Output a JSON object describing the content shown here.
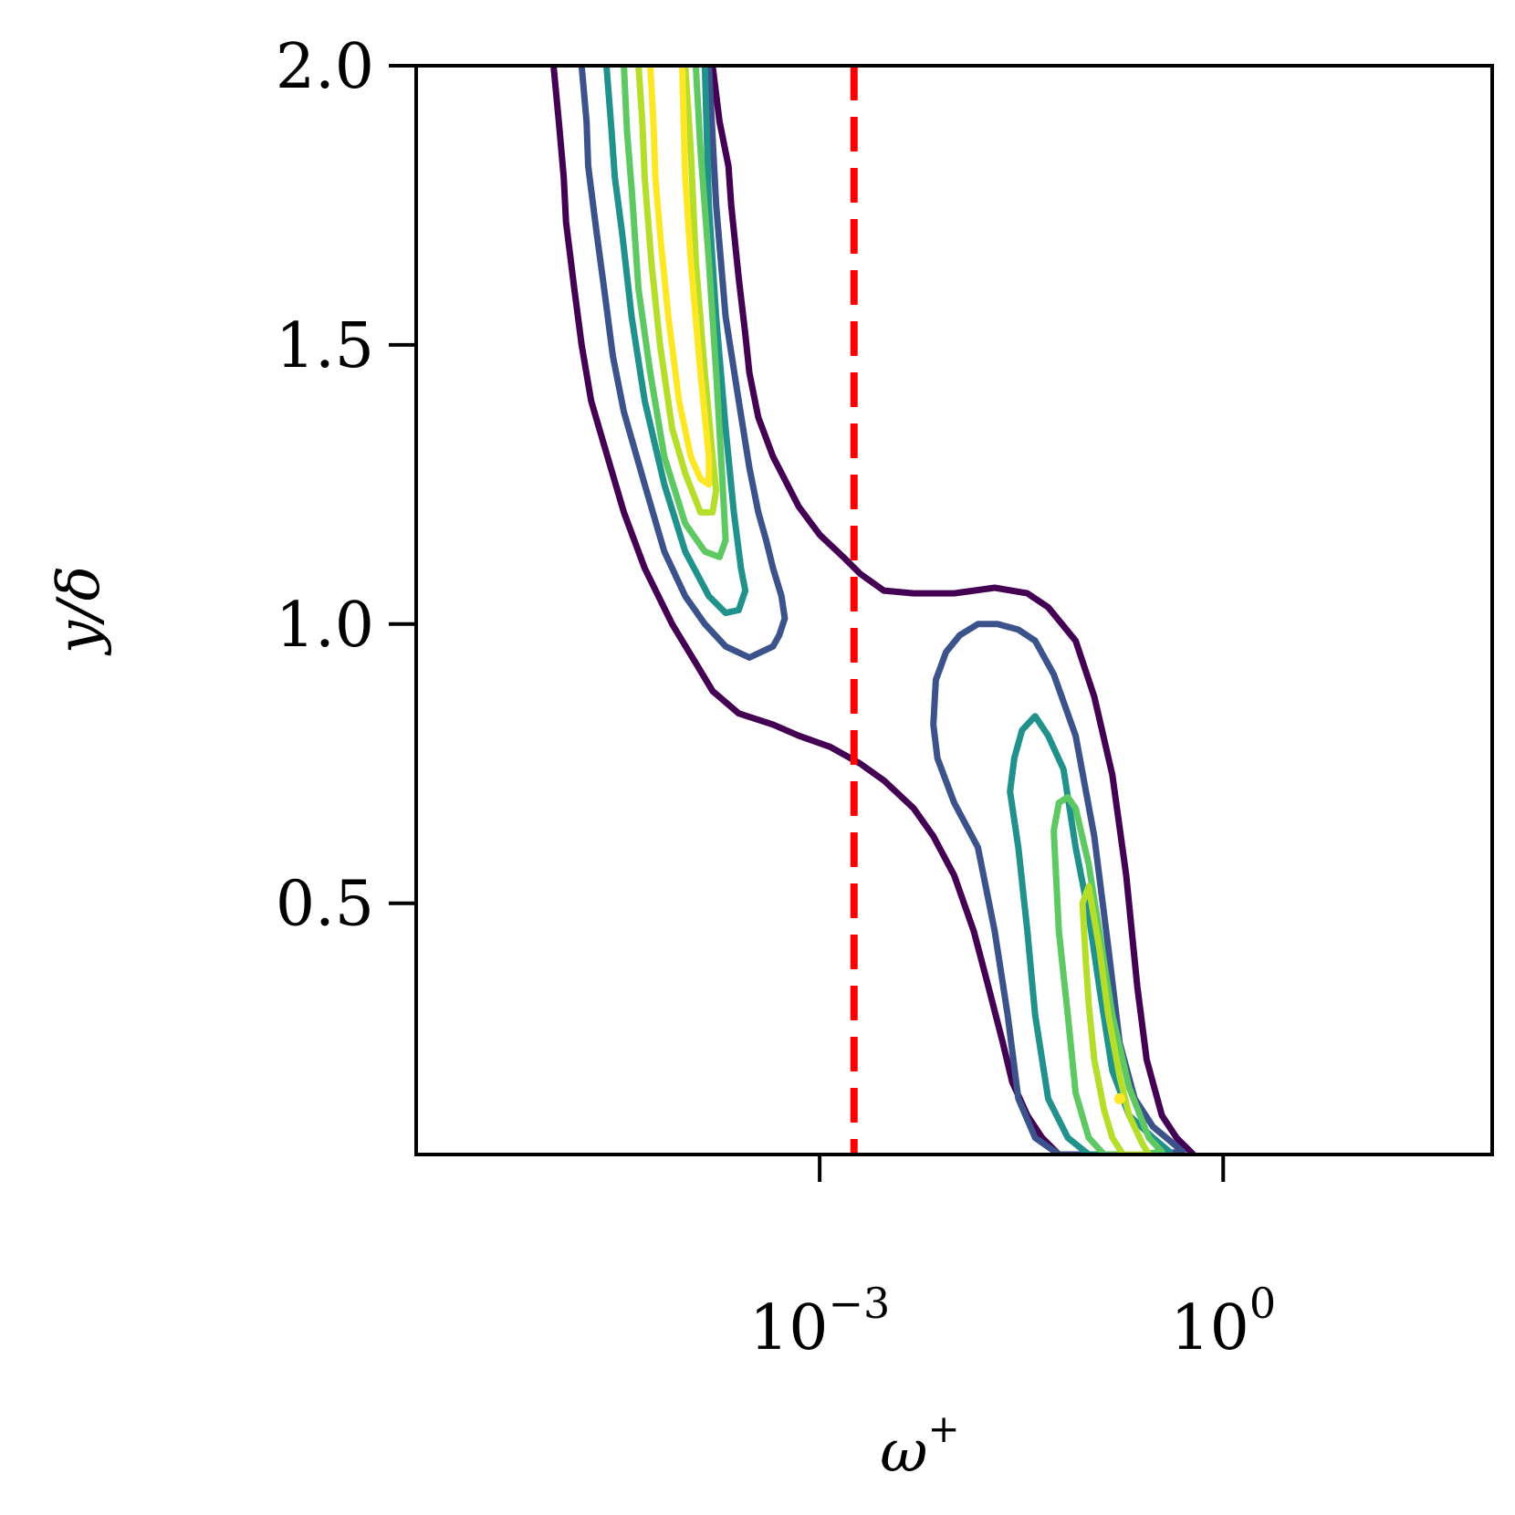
{
  "chart_data": {
    "type": "contour",
    "xlabel": "ω",
    "xlabel_sup": "+",
    "ylabel": "y/δ",
    "x_scale": "log",
    "xlim": [
      1e-06,
      100
    ],
    "ylim": [
      0.05,
      2.0
    ],
    "grid": false,
    "legend": "none",
    "x_ticks": [
      {
        "value": 0.001,
        "base": "10",
        "exponent": "−3"
      },
      {
        "value": 1,
        "base": "10",
        "exponent": "0"
      }
    ],
    "y_ticks": [
      {
        "value": 0.5,
        "label": "0.5"
      },
      {
        "value": 1.0,
        "label": "1.0"
      },
      {
        "value": 1.5,
        "label": "1.5"
      },
      {
        "value": 2.0,
        "label": "2.0"
      }
    ],
    "reference_line": {
      "orientation": "vertical",
      "x": 0.0018,
      "color": "#ff0000",
      "style": "dashed"
    },
    "level_colors": [
      "#440154",
      "#3b528b",
      "#21918c",
      "#5ec962",
      "#b5de2b",
      "#fde725"
    ],
    "contours": [
      {
        "level": 1,
        "color": "#440154",
        "closed": false,
        "points": [
          [
            1.05e-05,
            2.0
          ],
          [
            1.15e-05,
            1.9
          ],
          [
            1.25e-05,
            1.8
          ],
          [
            1.3e-05,
            1.72
          ],
          [
            1.5e-05,
            1.6
          ],
          [
            1.7e-05,
            1.5
          ],
          [
            2e-05,
            1.4
          ],
          [
            2.5e-05,
            1.32
          ],
          [
            3.5e-05,
            1.2
          ],
          [
            5e-05,
            1.1
          ],
          [
            8e-05,
            1.0
          ],
          [
            0.00012,
            0.93
          ],
          [
            0.00016,
            0.88
          ],
          [
            0.00025,
            0.84
          ],
          [
            0.00045,
            0.82
          ],
          [
            0.0007,
            0.8
          ],
          [
            0.0012,
            0.78
          ],
          [
            0.002,
            0.75
          ],
          [
            0.003,
            0.72
          ],
          [
            0.005,
            0.67
          ],
          [
            0.007,
            0.62
          ],
          [
            0.01,
            0.55
          ],
          [
            0.014,
            0.45
          ],
          [
            0.018,
            0.35
          ],
          [
            0.023,
            0.25
          ],
          [
            0.027,
            0.18
          ],
          [
            0.035,
            0.12
          ],
          [
            0.045,
            0.08
          ],
          [
            0.06,
            0.05
          ]
        ]
      },
      {
        "level": 1,
        "color": "#440154",
        "closed": false,
        "points": [
          [
            0.00016,
            2.0
          ],
          [
            0.00018,
            1.9
          ],
          [
            0.00021,
            1.82
          ],
          [
            0.00022,
            1.75
          ],
          [
            0.00025,
            1.62
          ],
          [
            0.00028,
            1.52
          ],
          [
            0.0003,
            1.45
          ],
          [
            0.00033,
            1.4
          ],
          [
            0.00035,
            1.37
          ],
          [
            0.00045,
            1.3
          ],
          [
            0.0007,
            1.21
          ],
          [
            0.001,
            1.16
          ],
          [
            0.0015,
            1.12
          ],
          [
            0.002,
            1.09
          ],
          [
            0.003,
            1.06
          ],
          [
            0.005,
            1.055
          ],
          [
            0.01,
            1.055
          ],
          [
            0.02,
            1.065
          ],
          [
            0.035,
            1.055
          ],
          [
            0.05,
            1.03
          ],
          [
            0.08,
            0.97
          ],
          [
            0.11,
            0.87
          ],
          [
            0.15,
            0.73
          ],
          [
            0.19,
            0.55
          ],
          [
            0.23,
            0.35
          ],
          [
            0.27,
            0.22
          ],
          [
            0.35,
            0.12
          ],
          [
            0.45,
            0.08
          ],
          [
            0.6,
            0.05
          ]
        ]
      },
      {
        "level": 2,
        "color": "#3b528b",
        "closed": false,
        "points": [
          [
            1.7e-05,
            2.0
          ],
          [
            1.85e-05,
            1.9
          ],
          [
            1.9e-05,
            1.82
          ],
          [
            2.2e-05,
            1.7
          ],
          [
            2.5e-05,
            1.6
          ],
          [
            2.9e-05,
            1.48
          ],
          [
            3.5e-05,
            1.38
          ],
          [
            5e-05,
            1.25
          ],
          [
            7e-05,
            1.13
          ],
          [
            0.0001,
            1.05
          ],
          [
            0.00014,
            1.0
          ],
          [
            0.0002,
            0.96
          ],
          [
            0.0003,
            0.94
          ],
          [
            0.00045,
            0.96
          ],
          [
            0.0005,
            0.98
          ],
          [
            0.00055,
            1.01
          ],
          [
            0.00052,
            1.05
          ],
          [
            0.00045,
            1.1
          ],
          [
            0.0004,
            1.15
          ],
          [
            0.00035,
            1.2
          ],
          [
            0.0003,
            1.28
          ],
          [
            0.00025,
            1.4
          ],
          [
            0.0002,
            1.55
          ],
          [
            0.00017,
            1.75
          ],
          [
            0.00015,
            2.0
          ]
        ]
      },
      {
        "level": 2,
        "color": "#3b528b",
        "closed": true,
        "points": [
          [
            0.0073,
            0.9
          ],
          [
            0.0087,
            0.95
          ],
          [
            0.011,
            0.98
          ],
          [
            0.015,
            1.0
          ],
          [
            0.021,
            1.0
          ],
          [
            0.03,
            0.99
          ],
          [
            0.04,
            0.97
          ],
          [
            0.055,
            0.91
          ],
          [
            0.08,
            0.8
          ],
          [
            0.11,
            0.62
          ],
          [
            0.14,
            0.42
          ],
          [
            0.17,
            0.25
          ],
          [
            0.22,
            0.15
          ],
          [
            0.3,
            0.1
          ],
          [
            0.4,
            0.075
          ],
          [
            0.5,
            0.055
          ],
          [
            0.3,
            0.05
          ],
          [
            0.06,
            0.05
          ],
          [
            0.04,
            0.08
          ],
          [
            0.03,
            0.15
          ],
          [
            0.025,
            0.3
          ],
          [
            0.02,
            0.45
          ],
          [
            0.015,
            0.6
          ],
          [
            0.01,
            0.68
          ],
          [
            0.0075,
            0.76
          ],
          [
            0.007,
            0.82
          ],
          [
            0.0073,
            0.9
          ]
        ]
      },
      {
        "level": 3,
        "color": "#21918c",
        "closed": false,
        "points": [
          [
            2.6e-05,
            2.0
          ],
          [
            2.8e-05,
            1.9
          ],
          [
            3e-05,
            1.8
          ],
          [
            3.4e-05,
            1.7
          ],
          [
            4e-05,
            1.55
          ],
          [
            5e-05,
            1.4
          ],
          [
            7e-05,
            1.25
          ],
          [
            0.0001,
            1.13
          ],
          [
            0.00015,
            1.05
          ],
          [
            0.0002,
            1.02
          ],
          [
            0.00025,
            1.025
          ],
          [
            0.00028,
            1.06
          ],
          [
            0.00026,
            1.1
          ],
          [
            0.00023,
            1.2
          ],
          [
            0.0002,
            1.35
          ],
          [
            0.00017,
            1.55
          ],
          [
            0.00015,
            1.75
          ],
          [
            0.00014,
            2.0
          ]
        ]
      },
      {
        "level": 3,
        "color": "#21918c",
        "closed": true,
        "points": [
          [
            0.026,
            0.7
          ],
          [
            0.028,
            0.76
          ],
          [
            0.032,
            0.81
          ],
          [
            0.04,
            0.835
          ],
          [
            0.05,
            0.8
          ],
          [
            0.065,
            0.74
          ],
          [
            0.08,
            0.6
          ],
          [
            0.1,
            0.48
          ],
          [
            0.12,
            0.35
          ],
          [
            0.15,
            0.2
          ],
          [
            0.2,
            0.12
          ],
          [
            0.3,
            0.08
          ],
          [
            0.4,
            0.055
          ],
          [
            0.3,
            0.05
          ],
          [
            0.1,
            0.05
          ],
          [
            0.07,
            0.08
          ],
          [
            0.05,
            0.15
          ],
          [
            0.04,
            0.3
          ],
          [
            0.035,
            0.45
          ],
          [
            0.03,
            0.6
          ],
          [
            0.026,
            0.7
          ]
        ]
      },
      {
        "level": 4,
        "color": "#5ec962",
        "closed": false,
        "points": [
          [
            3.5e-05,
            2.0
          ],
          [
            3.7e-05,
            1.88
          ],
          [
            4e-05,
            1.78
          ],
          [
            4.5e-05,
            1.6
          ],
          [
            5.5e-05,
            1.45
          ],
          [
            7e-05,
            1.3
          ],
          [
            0.0001,
            1.18
          ],
          [
            0.00014,
            1.13
          ],
          [
            0.00018,
            1.12
          ],
          [
            0.0002,
            1.15
          ],
          [
            0.00019,
            1.25
          ],
          [
            0.00017,
            1.45
          ],
          [
            0.00015,
            1.65
          ],
          [
            0.00013,
            1.85
          ],
          [
            0.00012,
            2.0
          ]
        ]
      },
      {
        "level": 4,
        "color": "#5ec962",
        "closed": true,
        "points": [
          [
            0.055,
            0.63
          ],
          [
            0.06,
            0.68
          ],
          [
            0.07,
            0.69
          ],
          [
            0.08,
            0.67
          ],
          [
            0.1,
            0.57
          ],
          [
            0.12,
            0.45
          ],
          [
            0.15,
            0.3
          ],
          [
            0.2,
            0.17
          ],
          [
            0.28,
            0.08
          ],
          [
            0.35,
            0.055
          ],
          [
            0.25,
            0.05
          ],
          [
            0.13,
            0.05
          ],
          [
            0.1,
            0.08
          ],
          [
            0.08,
            0.16
          ],
          [
            0.07,
            0.3
          ],
          [
            0.06,
            0.45
          ],
          [
            0.055,
            0.63
          ]
        ]
      },
      {
        "level": 5,
        "color": "#b5de2b",
        "closed": false,
        "points": [
          [
            4.5e-05,
            2.0
          ],
          [
            4.8e-05,
            1.9
          ],
          [
            5e-05,
            1.8
          ],
          [
            5.6e-05,
            1.65
          ],
          [
            6.5e-05,
            1.5
          ],
          [
            8e-05,
            1.35
          ],
          [
            0.0001,
            1.27
          ],
          [
            0.00013,
            1.2
          ],
          [
            0.00016,
            1.2
          ],
          [
            0.00017,
            1.24
          ],
          [
            0.00016,
            1.3
          ],
          [
            0.00014,
            1.45
          ],
          [
            0.00012,
            1.65
          ],
          [
            0.00011,
            1.85
          ],
          [
            0.0001,
            2.0
          ]
        ]
      },
      {
        "level": 5,
        "color": "#b5de2b",
        "closed": true,
        "points": [
          [
            0.09,
            0.5
          ],
          [
            0.1,
            0.53
          ],
          [
            0.105,
            0.5
          ],
          [
            0.12,
            0.42
          ],
          [
            0.14,
            0.3
          ],
          [
            0.17,
            0.19
          ],
          [
            0.2,
            0.12
          ],
          [
            0.25,
            0.07
          ],
          [
            0.28,
            0.05
          ],
          [
            0.18,
            0.05
          ],
          [
            0.15,
            0.08
          ],
          [
            0.13,
            0.13
          ],
          [
            0.11,
            0.22
          ],
          [
            0.1,
            0.32
          ],
          [
            0.095,
            0.4
          ],
          [
            0.09,
            0.5
          ]
        ]
      },
      {
        "level": 6,
        "color": "#fde725",
        "closed": false,
        "points": [
          [
            5.5e-05,
            2.0
          ],
          [
            5.8e-05,
            1.9
          ],
          [
            6e-05,
            1.8
          ],
          [
            6.5e-05,
            1.7
          ],
          [
            7.5e-05,
            1.55
          ],
          [
            9e-05,
            1.4
          ],
          [
            0.00011,
            1.3
          ],
          [
            0.00013,
            1.26
          ],
          [
            0.00015,
            1.25
          ],
          [
            0.00015,
            1.3
          ],
          [
            0.00013,
            1.45
          ],
          [
            0.00011,
            1.65
          ],
          [
            0.0001,
            1.8
          ],
          [
            9.5e-05,
            2.0
          ]
        ]
      }
    ],
    "markers": [
      {
        "x": 0.17,
        "y": 0.15,
        "color": "#fde725"
      }
    ]
  }
}
